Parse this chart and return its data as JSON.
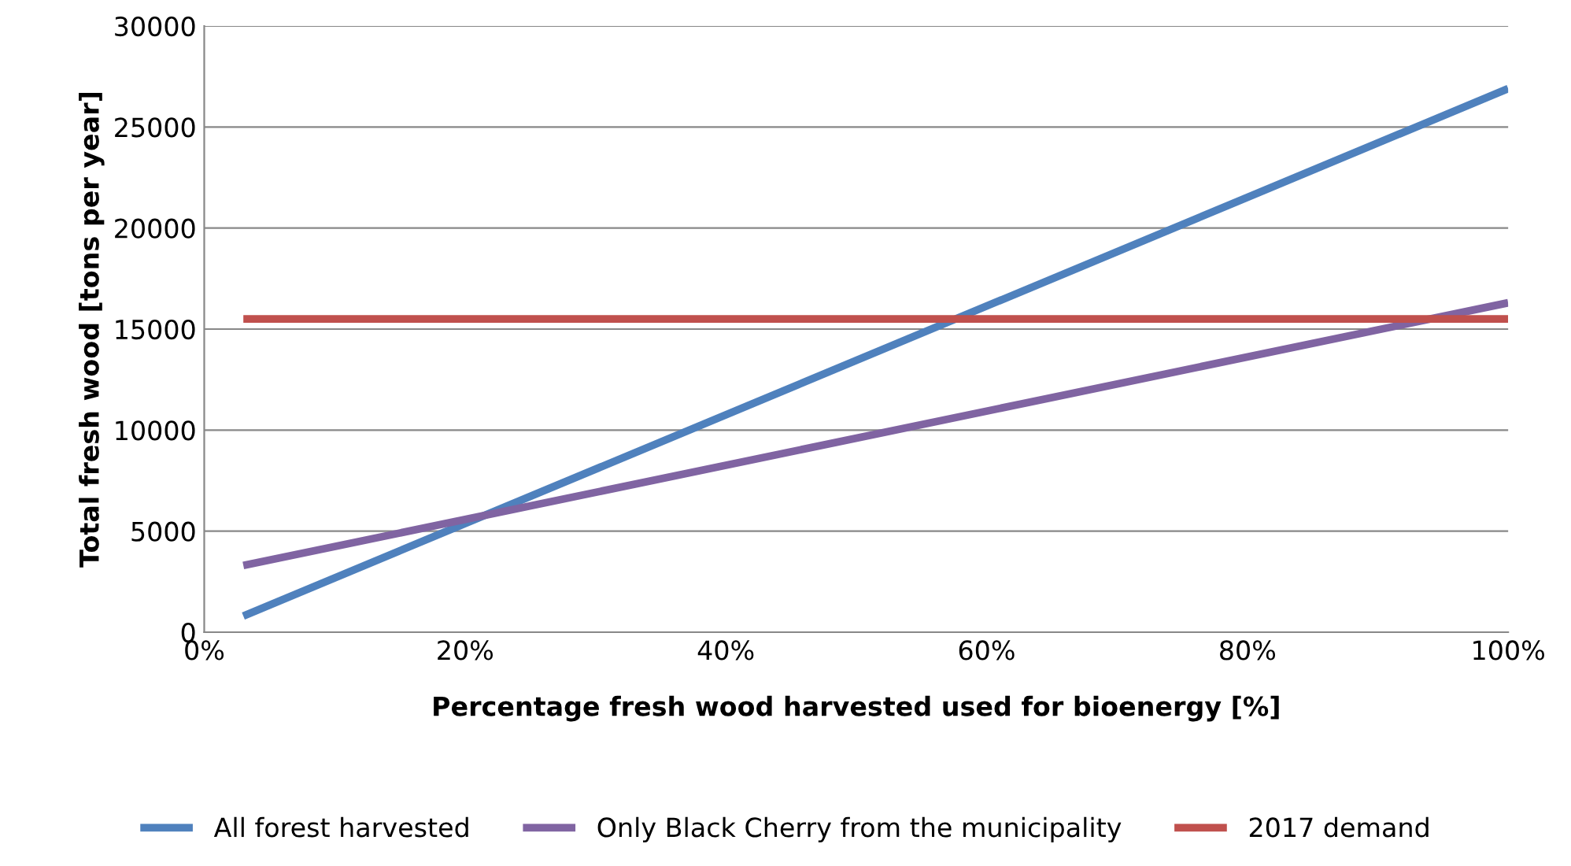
{
  "chart_data": {
    "type": "line",
    "xlabel": "Percentage fresh wood harvested used for bioenergy [%]",
    "ylabel": "Total fresh wood [tons per year]",
    "x": [
      3,
      100
    ],
    "series": [
      {
        "name": "All forest harvested",
        "color": "#4f81bd",
        "values": [
          800,
          26900
        ]
      },
      {
        "name": "Only Black Cherry from the municipality",
        "color": "#8064a2",
        "values": [
          3300,
          16300
        ]
      },
      {
        "name": "2017 demand",
        "color": "#c0504d",
        "values": [
          15500,
          15500
        ]
      }
    ],
    "xlim": [
      0,
      100
    ],
    "xticks": [
      {
        "value": 0,
        "label": "0%"
      },
      {
        "value": 20,
        "label": "20%"
      },
      {
        "value": 40,
        "label": "40%"
      },
      {
        "value": 60,
        "label": "60%"
      },
      {
        "value": 80,
        "label": "80%"
      },
      {
        "value": 100,
        "label": "100%"
      }
    ],
    "ylim": [
      0,
      30000
    ],
    "yticks": [
      0,
      5000,
      10000,
      15000,
      20000,
      25000,
      30000
    ],
    "grid": "y",
    "legend": "bottom",
    "marker": "none",
    "line_style": "solid"
  }
}
